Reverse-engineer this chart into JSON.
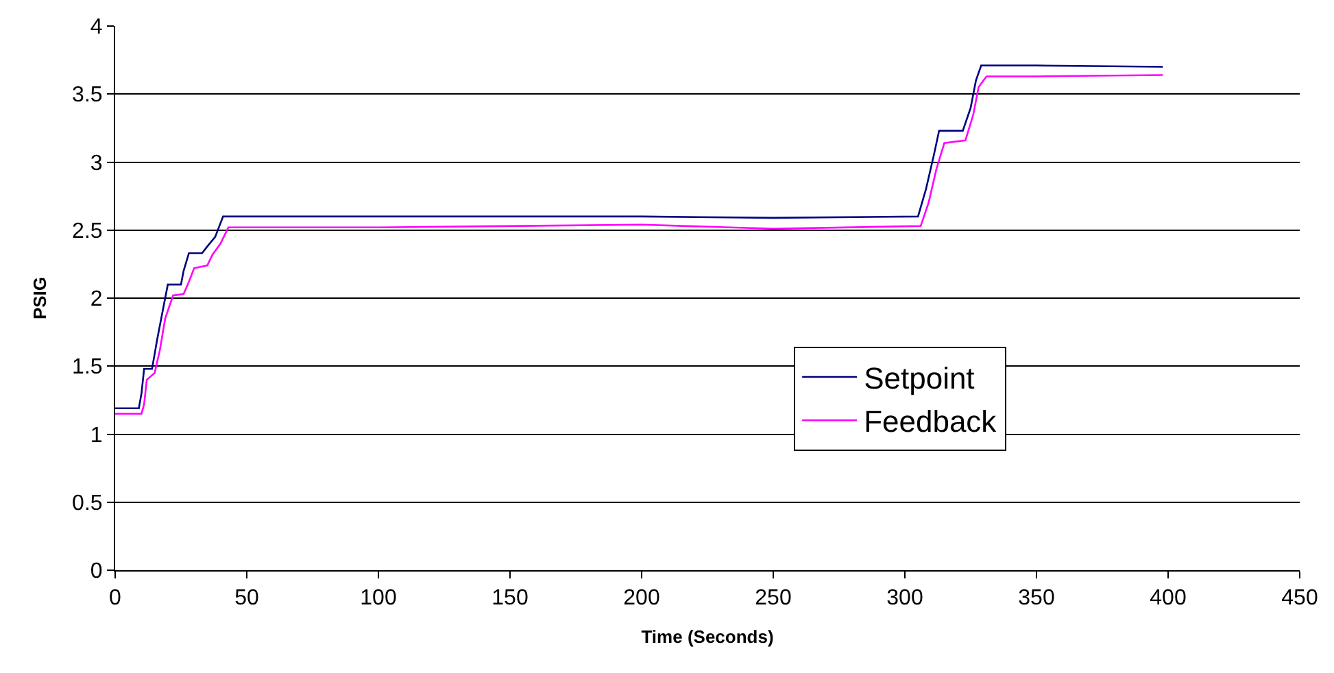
{
  "chart_data": {
    "type": "line",
    "xlabel": "Time (Seconds)",
    "ylabel": "PSIG",
    "xlim": [
      0,
      450
    ],
    "ylim": [
      0,
      4
    ],
    "xticks": [
      0,
      50,
      100,
      150,
      200,
      250,
      300,
      350,
      400,
      450
    ],
    "yticks": [
      0,
      0.5,
      1,
      1.5,
      2,
      2.5,
      3,
      3.5,
      4
    ],
    "grid": "y",
    "legend": "right",
    "marker": "none",
    "line_style": "solid",
    "series": [
      {
        "name": "Setpoint",
        "color": "#000080",
        "x": [
          0,
          9,
          10,
          11,
          14,
          16,
          18,
          20,
          25,
          26,
          28,
          33,
          35,
          38,
          41,
          100,
          200,
          250,
          305,
          308,
          311,
          313,
          322,
          325,
          327,
          329,
          350,
          398
        ],
        "values": [
          1.19,
          1.19,
          1.3,
          1.48,
          1.48,
          1.7,
          1.9,
          2.1,
          2.1,
          2.2,
          2.33,
          2.33,
          2.38,
          2.45,
          2.6,
          2.6,
          2.6,
          2.59,
          2.6,
          2.8,
          3.05,
          3.23,
          3.23,
          3.4,
          3.6,
          3.71,
          3.71,
          3.7
        ]
      },
      {
        "name": "Feedback",
        "color": "#ff00ff",
        "x": [
          0,
          10,
          11,
          12,
          15,
          17,
          19,
          22,
          26,
          28,
          30,
          35,
          37,
          40,
          43,
          100,
          200,
          250,
          306,
          309,
          312,
          315,
          323,
          326,
          328,
          331,
          350,
          398
        ],
        "values": [
          1.15,
          1.15,
          1.22,
          1.4,
          1.45,
          1.62,
          1.85,
          2.02,
          2.03,
          2.12,
          2.22,
          2.24,
          2.32,
          2.4,
          2.52,
          2.52,
          2.54,
          2.51,
          2.53,
          2.7,
          2.95,
          3.14,
          3.16,
          3.35,
          3.55,
          3.63,
          3.63,
          3.64
        ]
      }
    ]
  }
}
